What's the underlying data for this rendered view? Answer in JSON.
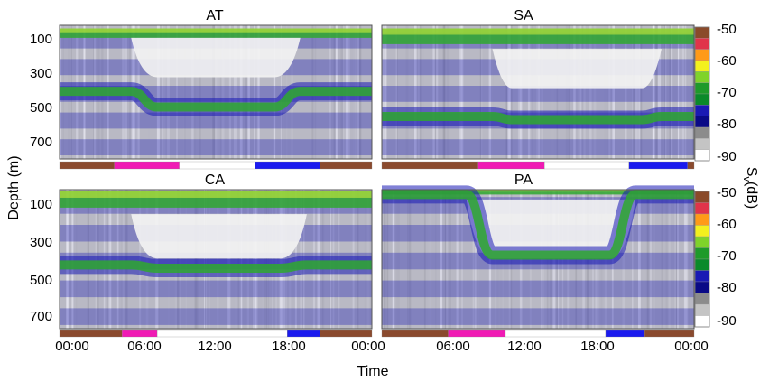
{
  "figure": {
    "ylabel": "Depth (m)",
    "xlabel": "Time",
    "colorbar": {
      "label": "S",
      "label_sub": "v",
      "label_unit": "(dB)",
      "ticks": [
        "-50",
        "-60",
        "-70",
        "-80",
        "-90"
      ],
      "colors": [
        "#8a4a2a",
        "#e0344a",
        "#ff9a18",
        "#f3f01e",
        "#7fd32a",
        "#1e9a2a",
        "#0a8a2a",
        "#1a1ab4",
        "#0a0a86",
        "#8c8c8c",
        "#c4c4c4",
        "#ffffff"
      ]
    },
    "xticks": [
      "00:00",
      "06:00",
      "12:00",
      "18:00",
      "00:00"
    ],
    "yticks": [
      "100",
      "300",
      "500",
      "700"
    ],
    "daynight_colors": {
      "night": "#8a4a2e",
      "dawn": "#f01ab4",
      "day": "#ffffff",
      "dusk": "#1a1aee"
    }
  },
  "chart_data": [
    {
      "type": "heatmap",
      "title": "AT",
      "x_range": [
        "00:00",
        "24:00"
      ],
      "y_range_m": [
        0,
        850
      ],
      "daynight_hours": [
        {
          "phase": "night",
          "start": 0,
          "end": 4.2
        },
        {
          "phase": "dawn",
          "start": 4.2,
          "end": 9.2
        },
        {
          "phase": "day",
          "start": 9.2,
          "end": 15
        },
        {
          "phase": "dusk",
          "start": 15,
          "end": 20
        },
        {
          "phase": "night",
          "start": 20,
          "end": 24
        }
      ],
      "surface_layer_m": [
        20,
        80
      ],
      "migrating_layer": {
        "night_depth_m": 420,
        "day_depth_m": 520,
        "descent_hours": [
          5.5,
          7.5
        ],
        "ascent_hours": [
          16.5,
          18.5
        ]
      },
      "daytime_cloud_m": [
        80,
        330
      ]
    },
    {
      "type": "heatmap",
      "title": "SA",
      "x_range": [
        "00:00",
        "24:00"
      ],
      "y_range_m": [
        0,
        850
      ],
      "daynight_hours": [
        {
          "phase": "night",
          "start": 0,
          "end": 7.4
        },
        {
          "phase": "dawn",
          "start": 7.4,
          "end": 12.5
        },
        {
          "phase": "day",
          "start": 12.5,
          "end": 19
        },
        {
          "phase": "dusk",
          "start": 19,
          "end": 23.5
        },
        {
          "phase": "night",
          "start": 23.5,
          "end": 24
        }
      ],
      "surface_layer_m": [
        20,
        120
      ],
      "migrating_layer": {
        "night_depth_m": 580,
        "day_depth_m": 600,
        "descent_hours": [
          8.5,
          10
        ],
        "ascent_hours": [
          20,
          21.5
        ]
      },
      "daytime_cloud_m": [
        150,
        400
      ]
    },
    {
      "type": "heatmap",
      "title": "CA",
      "x_range": [
        "00:00",
        "24:00"
      ],
      "y_range_m": [
        0,
        850
      ],
      "daynight_hours": [
        {
          "phase": "night",
          "start": 0,
          "end": 4.8
        },
        {
          "phase": "dawn",
          "start": 4.8,
          "end": 7.5
        },
        {
          "phase": "day",
          "start": 7.5,
          "end": 17.5
        },
        {
          "phase": "dusk",
          "start": 17.5,
          "end": 20
        },
        {
          "phase": "night",
          "start": 20,
          "end": 24
        }
      ],
      "surface_layer_m": [
        10,
        110
      ],
      "migrating_layer": {
        "night_depth_m": 460,
        "day_depth_m": 480,
        "descent_hours": [
          5.5,
          7.5
        ],
        "ascent_hours": [
          17,
          19
        ]
      },
      "daytime_cloud_m": [
        150,
        420
      ]
    },
    {
      "type": "heatmap",
      "title": "PA",
      "x_range": [
        "00:00",
        "24:00"
      ],
      "y_range_m": [
        0,
        850
      ],
      "daynight_hours": [
        {
          "phase": "night",
          "start": 0,
          "end": 5.1
        },
        {
          "phase": "dawn",
          "start": 5.1,
          "end": 9.5
        },
        {
          "phase": "day",
          "start": 9.5,
          "end": 17.2
        },
        {
          "phase": "dusk",
          "start": 17.2,
          "end": 20.2
        },
        {
          "phase": "night",
          "start": 20.2,
          "end": 24
        }
      ],
      "surface_layer_m": [
        0,
        30
      ],
      "migrating_layer": {
        "night_depth_m": 30,
        "day_depth_m": 400,
        "descent_hours": [
          6.5,
          8.5
        ],
        "ascent_hours": [
          17.5,
          19.5
        ]
      },
      "daytime_cloud_m": [
        60,
        420
      ]
    }
  ]
}
